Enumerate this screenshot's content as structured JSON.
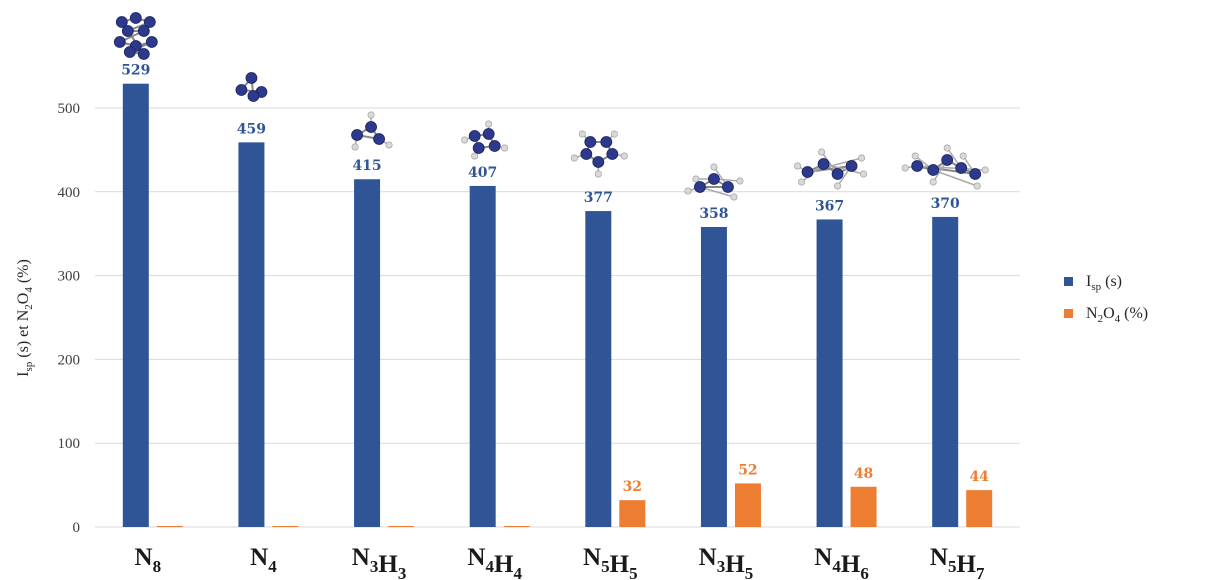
{
  "chart_data": {
    "type": "bar",
    "categories": [
      {
        "parts": [
          [
            "N",
            "8"
          ]
        ]
      },
      {
        "parts": [
          [
            "N",
            "4"
          ]
        ]
      },
      {
        "parts": [
          [
            "N",
            "3"
          ],
          [
            "H",
            "3"
          ]
        ]
      },
      {
        "parts": [
          [
            "N",
            "4"
          ],
          [
            "H",
            "4"
          ]
        ]
      },
      {
        "parts": [
          [
            "N",
            "5"
          ],
          [
            "H",
            "5"
          ]
        ]
      },
      {
        "parts": [
          [
            "N",
            "3"
          ],
          [
            "H",
            "5"
          ]
        ]
      },
      {
        "parts": [
          [
            "N",
            "4"
          ],
          [
            "H",
            "6"
          ]
        ]
      },
      {
        "parts": [
          [
            "N",
            "5"
          ],
          [
            "H",
            "7"
          ]
        ]
      }
    ],
    "series": [
      {
        "legend": {
          "base": "I",
          "sub": "sp",
          "rest": " (s)"
        },
        "color": "#2F5597",
        "values": [
          529,
          459,
          415,
          407,
          377,
          358,
          367,
          370
        ],
        "labels": [
          "529",
          "459",
          "415",
          "407",
          "377",
          "358",
          "367",
          "370"
        ]
      },
      {
        "legend": {
          "base": "N",
          "sub": "2",
          "base2": "O",
          "sub2": "4",
          "rest": " (%)"
        },
        "color": "#ED7D31",
        "values": [
          0,
          0,
          0,
          0,
          32,
          52,
          48,
          44
        ],
        "labels": [
          "",
          "",
          "",
          "",
          "32",
          "52",
          "48",
          "44"
        ]
      }
    ],
    "ylabel": {
      "p1": "I",
      "s1": "sp",
      "p2": " (s) et N",
      "s2": "2",
      "p3": "O",
      "s3": "4",
      "p4": " (%)"
    },
    "ylim": [
      0,
      500
    ],
    "yticks": [
      "0",
      "100",
      "200",
      "300",
      "400",
      "500"
    ],
    "grid": true,
    "legend_position": "right",
    "molecule_icons": [
      "N8-molecule",
      "N4-molecule",
      "N3H3-molecule",
      "N4H4-molecule",
      "N5H5-molecule",
      "N3H5-molecule",
      "N4H6-molecule",
      "N5H7-molecule"
    ]
  }
}
